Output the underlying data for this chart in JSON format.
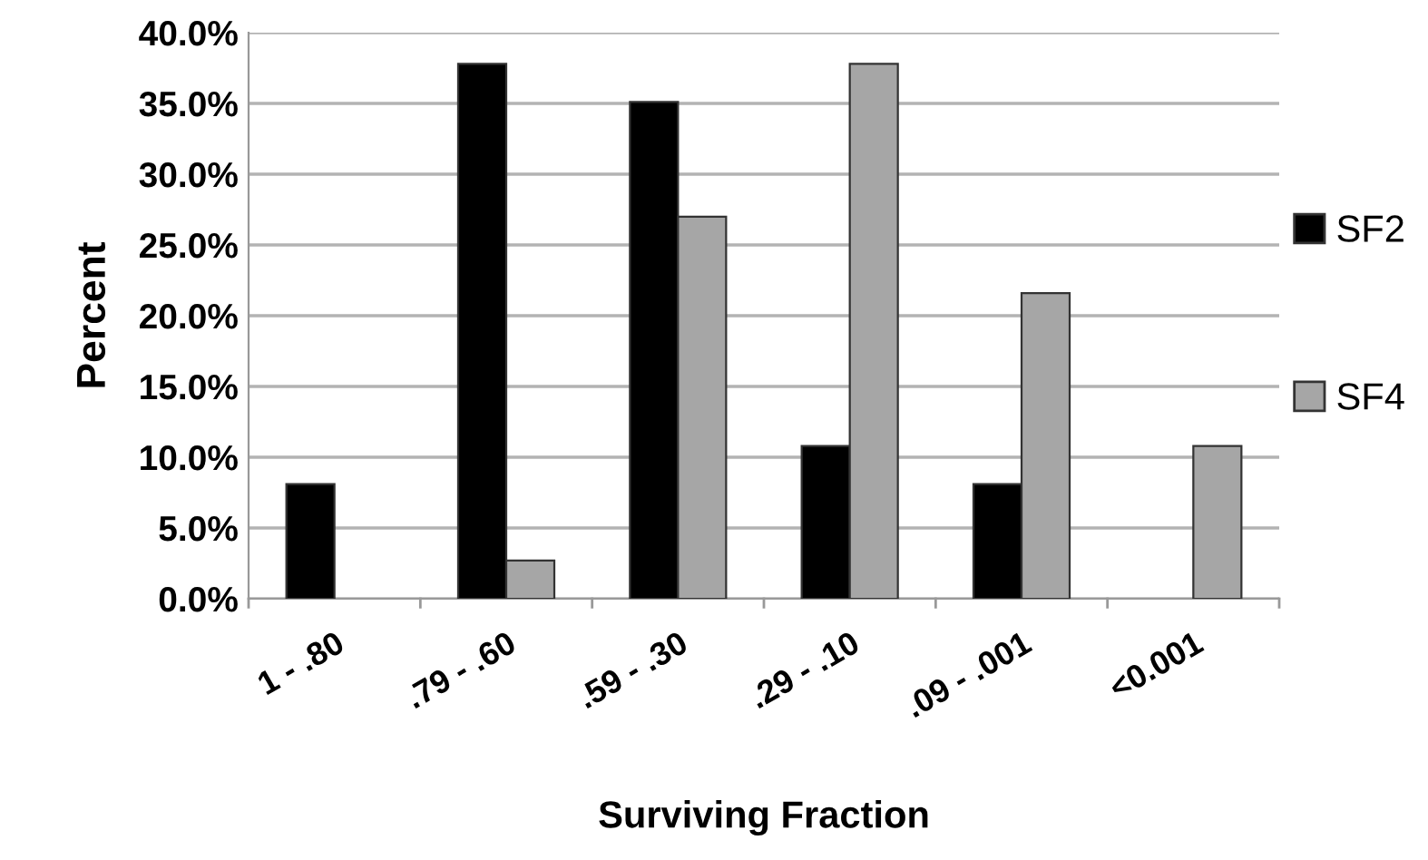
{
  "chart_data": {
    "type": "bar",
    "xlabel": "Surviving Fraction",
    "ylabel": "Percent",
    "categories": [
      "1 - .80",
      ".79 - .60",
      ".59 - .30",
      ".29 - .10",
      ".09 - .001",
      "<0.001"
    ],
    "series": [
      {
        "name": "SF2",
        "color": "#000000",
        "values": [
          8.1,
          37.8,
          35.1,
          10.8,
          8.1,
          null
        ]
      },
      {
        "name": "SF4",
        "color": "#a6a6a6",
        "values": [
          null,
          2.7,
          27.0,
          37.8,
          21.6,
          10.8
        ]
      }
    ],
    "ylim": [
      0,
      40
    ],
    "yticks": [
      {
        "value": 0,
        "label": "0.0%"
      },
      {
        "value": 5,
        "label": "5.0%"
      },
      {
        "value": 10,
        "label": "10.0%"
      },
      {
        "value": 15,
        "label": "15.0%"
      },
      {
        "value": 20,
        "label": "20.0%"
      },
      {
        "value": 25,
        "label": "25.0%"
      },
      {
        "value": 30,
        "label": "30.0%"
      },
      {
        "value": 35,
        "label": "35.0%"
      },
      {
        "value": 40,
        "label": "40.0%"
      }
    ],
    "grid": "y",
    "legend": "right"
  }
}
